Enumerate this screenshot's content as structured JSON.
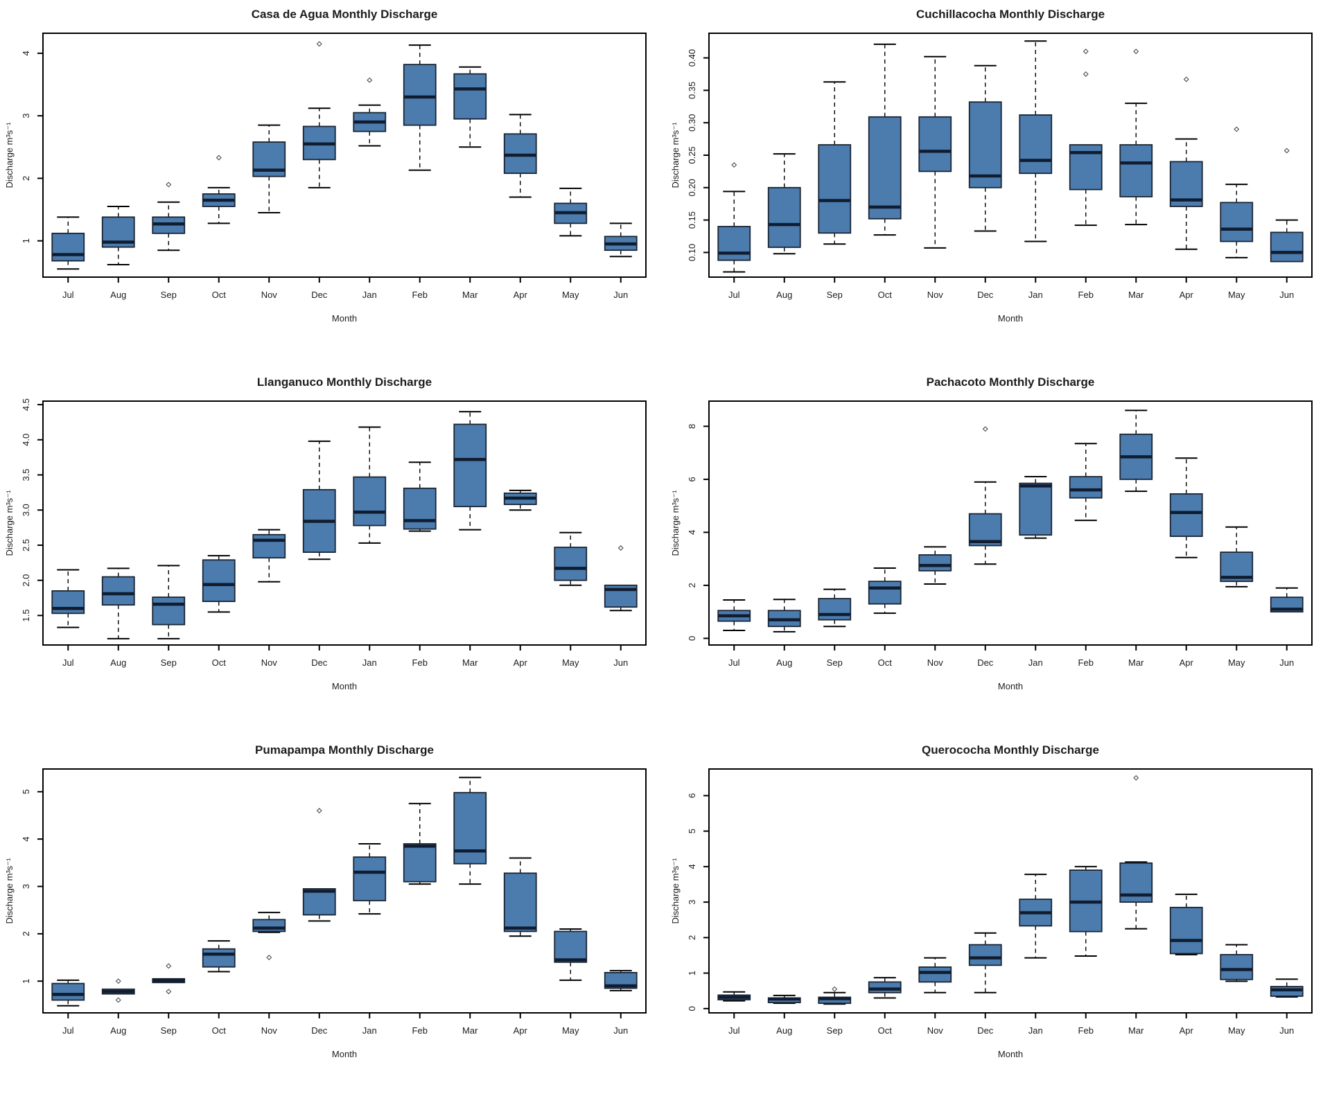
{
  "months": [
    "Jul",
    "Aug",
    "Sep",
    "Oct",
    "Nov",
    "Dec",
    "Jan",
    "Feb",
    "Mar",
    "Apr",
    "May",
    "Jun"
  ],
  "colors": {
    "box_fill": "#4b7cad",
    "box_stroke": "#1a2433",
    "median": "#101c30",
    "whisker": "#000000",
    "outlier": "#4a4a4a",
    "frame": "#000000",
    "text": "#1c1c1c"
  },
  "chart_data": [
    {
      "type": "boxplot",
      "title": "Casa de Agua Monthly Discharge",
      "xlabel": "Month",
      "ylabel": "Discharge m³s⁻¹",
      "categories": [
        "Jul",
        "Aug",
        "Sep",
        "Oct",
        "Nov",
        "Dec",
        "Jan",
        "Feb",
        "Mar",
        "Apr",
        "May",
        "Jun"
      ],
      "ylim": [
        0.42,
        4.32
      ],
      "yticks": [
        {
          "v": 1,
          "label": "1"
        },
        {
          "v": 2,
          "label": "2"
        },
        {
          "v": 3,
          "label": "3"
        },
        {
          "v": 4,
          "label": "4"
        }
      ],
      "boxes": [
        {
          "month": "Jul",
          "low": 0.55,
          "q1": 0.68,
          "med": 0.78,
          "q3": 1.12,
          "high": 1.38,
          "out": []
        },
        {
          "month": "Aug",
          "low": 0.62,
          "q1": 0.9,
          "med": 0.98,
          "q3": 1.38,
          "high": 1.55,
          "out": []
        },
        {
          "month": "Sep",
          "low": 0.85,
          "q1": 1.12,
          "med": 1.27,
          "q3": 1.38,
          "high": 1.62,
          "out": [
            1.9
          ]
        },
        {
          "month": "Oct",
          "low": 1.28,
          "q1": 1.55,
          "med": 1.65,
          "q3": 1.75,
          "high": 1.85,
          "out": [
            2.33
          ]
        },
        {
          "month": "Nov",
          "low": 1.45,
          "q1": 2.03,
          "med": 2.13,
          "q3": 2.58,
          "high": 2.85,
          "out": []
        },
        {
          "month": "Dec",
          "low": 1.85,
          "q1": 2.3,
          "med": 2.55,
          "q3": 2.83,
          "high": 3.12,
          "out": [
            4.15
          ]
        },
        {
          "month": "Jan",
          "low": 2.52,
          "q1": 2.75,
          "med": 2.9,
          "q3": 3.05,
          "high": 3.17,
          "out": [
            3.57
          ]
        },
        {
          "month": "Feb",
          "low": 2.13,
          "q1": 2.85,
          "med": 3.3,
          "q3": 3.82,
          "high": 4.13,
          "out": []
        },
        {
          "month": "Mar",
          "low": 2.5,
          "q1": 2.95,
          "med": 3.43,
          "q3": 3.67,
          "high": 3.78,
          "out": []
        },
        {
          "month": "Apr",
          "low": 1.7,
          "q1": 2.08,
          "med": 2.37,
          "q3": 2.71,
          "high": 3.02,
          "out": []
        },
        {
          "month": "May",
          "low": 1.08,
          "q1": 1.28,
          "med": 1.45,
          "q3": 1.6,
          "high": 1.84,
          "out": []
        },
        {
          "month": "Jun",
          "low": 0.75,
          "q1": 0.85,
          "med": 0.95,
          "q3": 1.07,
          "high": 1.28,
          "out": []
        }
      ]
    },
    {
      "type": "boxplot",
      "title": "Cuchillacocha Monthly Discharge",
      "xlabel": "Month",
      "ylabel": "Discharge m³s⁻¹",
      "categories": [
        "Jul",
        "Aug",
        "Sep",
        "Oct",
        "Nov",
        "Dec",
        "Jan",
        "Feb",
        "Mar",
        "Apr",
        "May",
        "Jun"
      ],
      "ylim": [
        0.062,
        0.438
      ],
      "yticks": [
        {
          "v": 0.1,
          "label": "0.10"
        },
        {
          "v": 0.15,
          "label": "0.15"
        },
        {
          "v": 0.2,
          "label": "0.20"
        },
        {
          "v": 0.25,
          "label": "0.25"
        },
        {
          "v": 0.3,
          "label": "0.30"
        },
        {
          "v": 0.35,
          "label": "0.35"
        },
        {
          "v": 0.4,
          "label": "0.40"
        }
      ],
      "boxes": [
        {
          "month": "Jul",
          "low": 0.07,
          "q1": 0.088,
          "med": 0.099,
          "q3": 0.14,
          "high": 0.194,
          "out": [
            0.235
          ]
        },
        {
          "month": "Aug",
          "low": 0.098,
          "q1": 0.108,
          "med": 0.143,
          "q3": 0.2,
          "high": 0.252,
          "out": []
        },
        {
          "month": "Sep",
          "low": 0.113,
          "q1": 0.13,
          "med": 0.18,
          "q3": 0.266,
          "high": 0.363,
          "out": []
        },
        {
          "month": "Oct",
          "low": 0.127,
          "q1": 0.152,
          "med": 0.17,
          "q3": 0.309,
          "high": 0.421,
          "out": []
        },
        {
          "month": "Nov",
          "low": 0.107,
          "q1": 0.225,
          "med": 0.256,
          "q3": 0.309,
          "high": 0.402,
          "out": []
        },
        {
          "month": "Dec",
          "low": 0.133,
          "q1": 0.2,
          "med": 0.218,
          "q3": 0.332,
          "high": 0.388,
          "out": []
        },
        {
          "month": "Jan",
          "low": 0.117,
          "q1": 0.222,
          "med": 0.242,
          "q3": 0.312,
          "high": 0.426,
          "out": []
        },
        {
          "month": "Feb",
          "low": 0.142,
          "q1": 0.197,
          "med": 0.254,
          "q3": 0.266,
          "high": 0.266,
          "out": [
            0.375,
            0.41
          ]
        },
        {
          "month": "Mar",
          "low": 0.143,
          "q1": 0.186,
          "med": 0.238,
          "q3": 0.266,
          "high": 0.33,
          "out": [
            0.41
          ]
        },
        {
          "month": "Apr",
          "low": 0.105,
          "q1": 0.171,
          "med": 0.181,
          "q3": 0.24,
          "high": 0.275,
          "out": [
            0.367
          ]
        },
        {
          "month": "May",
          "low": 0.092,
          "q1": 0.117,
          "med": 0.136,
          "q3": 0.177,
          "high": 0.205,
          "out": [
            0.29
          ]
        },
        {
          "month": "Jun",
          "low": 0.085,
          "q1": 0.086,
          "med": 0.1,
          "q3": 0.131,
          "high": 0.15,
          "out": [
            0.257
          ]
        }
      ]
    },
    {
      "type": "boxplot",
      "title": "Llanganuco Monthly Discharge",
      "xlabel": "Month",
      "ylabel": "Discharge m³s⁻¹",
      "categories": [
        "Jul",
        "Aug",
        "Sep",
        "Oct",
        "Nov",
        "Dec",
        "Jan",
        "Feb",
        "Mar",
        "Apr",
        "May",
        "Jun"
      ],
      "ylim": [
        1.08,
        4.55
      ],
      "yticks": [
        {
          "v": 1.5,
          "label": "1.5"
        },
        {
          "v": 2.0,
          "label": "2.0"
        },
        {
          "v": 2.5,
          "label": "2.5"
        },
        {
          "v": 3.0,
          "label": "3.0"
        },
        {
          "v": 3.5,
          "label": "3.5"
        },
        {
          "v": 4.0,
          "label": "4.0"
        },
        {
          "v": 4.5,
          "label": "4.5"
        }
      ],
      "boxes": [
        {
          "month": "Jul",
          "low": 1.33,
          "q1": 1.53,
          "med": 1.6,
          "q3": 1.85,
          "high": 2.15,
          "out": []
        },
        {
          "month": "Aug",
          "low": 1.17,
          "q1": 1.65,
          "med": 1.81,
          "q3": 2.05,
          "high": 2.17,
          "out": []
        },
        {
          "month": "Sep",
          "low": 1.17,
          "q1": 1.37,
          "med": 1.66,
          "q3": 1.76,
          "high": 2.21,
          "out": []
        },
        {
          "month": "Oct",
          "low": 1.55,
          "q1": 1.7,
          "med": 1.94,
          "q3": 2.29,
          "high": 2.35,
          "out": []
        },
        {
          "month": "Nov",
          "low": 1.98,
          "q1": 2.32,
          "med": 2.57,
          "q3": 2.65,
          "high": 2.72,
          "out": []
        },
        {
          "month": "Dec",
          "low": 2.3,
          "q1": 2.4,
          "med": 2.84,
          "q3": 3.29,
          "high": 3.98,
          "out": []
        },
        {
          "month": "Jan",
          "low": 2.53,
          "q1": 2.78,
          "med": 2.97,
          "q3": 3.47,
          "high": 4.18,
          "out": []
        },
        {
          "month": "Feb",
          "low": 2.7,
          "q1": 2.73,
          "med": 2.85,
          "q3": 3.31,
          "high": 3.68,
          "out": []
        },
        {
          "month": "Mar",
          "low": 2.72,
          "q1": 3.05,
          "med": 3.72,
          "q3": 4.22,
          "high": 4.4,
          "out": []
        },
        {
          "month": "Apr",
          "low": 3.0,
          "q1": 3.08,
          "med": 3.17,
          "q3": 3.24,
          "high": 3.28,
          "out": []
        },
        {
          "month": "May",
          "low": 1.93,
          "q1": 2.0,
          "med": 2.17,
          "q3": 2.47,
          "high": 2.68,
          "out": []
        },
        {
          "month": "Jun",
          "low": 1.57,
          "q1": 1.62,
          "med": 1.87,
          "q3": 1.93,
          "high": 1.93,
          "out": [
            2.46
          ]
        }
      ]
    },
    {
      "type": "boxplot",
      "title": "Pachacoto Monthly Discharge",
      "xlabel": "Month",
      "ylabel": "Discharge m³s⁻¹",
      "categories": [
        "Jul",
        "Aug",
        "Sep",
        "Oct",
        "Nov",
        "Dec",
        "Jan",
        "Feb",
        "Mar",
        "Apr",
        "May",
        "Jun"
      ],
      "ylim": [
        -0.25,
        8.95
      ],
      "yticks": [
        {
          "v": 0,
          "label": "0"
        },
        {
          "v": 2,
          "label": "2"
        },
        {
          "v": 4,
          "label": "4"
        },
        {
          "v": 6,
          "label": "6"
        },
        {
          "v": 8,
          "label": "8"
        }
      ],
      "boxes": [
        {
          "month": "Jul",
          "low": 0.3,
          "q1": 0.65,
          "med": 0.85,
          "q3": 1.05,
          "high": 1.45,
          "out": []
        },
        {
          "month": "Aug",
          "low": 0.25,
          "q1": 0.45,
          "med": 0.7,
          "q3": 1.05,
          "high": 1.47,
          "out": []
        },
        {
          "month": "Sep",
          "low": 0.45,
          "q1": 0.7,
          "med": 0.9,
          "q3": 1.5,
          "high": 1.85,
          "out": []
        },
        {
          "month": "Oct",
          "low": 0.95,
          "q1": 1.3,
          "med": 1.9,
          "q3": 2.15,
          "high": 2.65,
          "out": []
        },
        {
          "month": "Nov",
          "low": 2.05,
          "q1": 2.55,
          "med": 2.75,
          "q3": 3.15,
          "high": 3.45,
          "out": []
        },
        {
          "month": "Dec",
          "low": 2.8,
          "q1": 3.5,
          "med": 3.65,
          "q3": 4.7,
          "high": 5.9,
          "out": [
            7.9
          ]
        },
        {
          "month": "Jan",
          "low": 3.78,
          "q1": 3.9,
          "med": 5.75,
          "q3": 5.85,
          "high": 6.1,
          "out": []
        },
        {
          "month": "Feb",
          "low": 4.45,
          "q1": 5.3,
          "med": 5.6,
          "q3": 6.1,
          "high": 7.35,
          "out": []
        },
        {
          "month": "Mar",
          "low": 5.55,
          "q1": 6.0,
          "med": 6.85,
          "q3": 7.7,
          "high": 8.6,
          "out": []
        },
        {
          "month": "Apr",
          "low": 3.05,
          "q1": 3.85,
          "med": 4.75,
          "q3": 5.45,
          "high": 6.8,
          "out": []
        },
        {
          "month": "May",
          "low": 1.95,
          "q1": 2.15,
          "med": 2.3,
          "q3": 3.25,
          "high": 4.2,
          "out": []
        },
        {
          "month": "Jun",
          "low": 1.0,
          "q1": 1.0,
          "med": 1.1,
          "q3": 1.55,
          "high": 1.9,
          "out": []
        }
      ]
    },
    {
      "type": "boxplot",
      "title": "Pumapampa Monthly Discharge",
      "xlabel": "Month",
      "ylabel": "Discharge m³s⁻¹",
      "categories": [
        "Jul",
        "Aug",
        "Sep",
        "Oct",
        "Nov",
        "Dec",
        "Jan",
        "Feb",
        "Mar",
        "Apr",
        "May",
        "Jun"
      ],
      "ylim": [
        0.33,
        5.48
      ],
      "yticks": [
        {
          "v": 1,
          "label": "1"
        },
        {
          "v": 2,
          "label": "2"
        },
        {
          "v": 3,
          "label": "3"
        },
        {
          "v": 4,
          "label": "4"
        },
        {
          "v": 5,
          "label": "5"
        }
      ],
      "boxes": [
        {
          "month": "Jul",
          "low": 0.48,
          "q1": 0.6,
          "med": 0.72,
          "q3": 0.95,
          "high": 1.02,
          "out": []
        },
        {
          "month": "Aug",
          "low": 0.73,
          "q1": 0.73,
          "med": 0.78,
          "q3": 0.83,
          "high": 0.83,
          "out": [
            1.0,
            0.6
          ]
        },
        {
          "month": "Sep",
          "low": 0.97,
          "q1": 0.97,
          "med": 1.01,
          "q3": 1.05,
          "high": 1.05,
          "out": [
            1.32,
            0.78
          ]
        },
        {
          "month": "Oct",
          "low": 1.2,
          "q1": 1.3,
          "med": 1.57,
          "q3": 1.68,
          "high": 1.85,
          "out": []
        },
        {
          "month": "Nov",
          "low": 2.03,
          "q1": 2.05,
          "med": 2.12,
          "q3": 2.3,
          "high": 2.45,
          "out": [
            1.5
          ]
        },
        {
          "month": "Dec",
          "low": 2.27,
          "q1": 2.4,
          "med": 2.9,
          "q3": 2.95,
          "high": 2.95,
          "out": [
            4.6
          ]
        },
        {
          "month": "Jan",
          "low": 2.42,
          "q1": 2.7,
          "med": 3.3,
          "q3": 3.62,
          "high": 3.9,
          "out": []
        },
        {
          "month": "Feb",
          "low": 3.05,
          "q1": 3.1,
          "med": 3.85,
          "q3": 3.9,
          "high": 4.75,
          "out": []
        },
        {
          "month": "Mar",
          "low": 3.05,
          "q1": 3.48,
          "med": 3.75,
          "q3": 4.98,
          "high": 5.3,
          "out": []
        },
        {
          "month": "Apr",
          "low": 1.95,
          "q1": 2.05,
          "med": 2.12,
          "q3": 3.28,
          "high": 3.6,
          "out": []
        },
        {
          "month": "May",
          "low": 1.02,
          "q1": 1.4,
          "med": 1.45,
          "q3": 2.05,
          "high": 2.1,
          "out": []
        },
        {
          "month": "Jun",
          "low": 0.8,
          "q1": 0.85,
          "med": 0.9,
          "q3": 1.18,
          "high": 1.22,
          "out": []
        }
      ]
    },
    {
      "type": "boxplot",
      "title": "Querococha Monthly Discharge",
      "xlabel": "Month",
      "ylabel": "Discharge m³s⁻¹",
      "categories": [
        "Jul",
        "Aug",
        "Sep",
        "Oct",
        "Nov",
        "Dec",
        "Jan",
        "Feb",
        "Mar",
        "Apr",
        "May",
        "Jun"
      ],
      "ylim": [
        -0.12,
        6.75
      ],
      "yticks": [
        {
          "v": 0,
          "label": "0"
        },
        {
          "v": 1,
          "label": "1"
        },
        {
          "v": 2,
          "label": "2"
        },
        {
          "v": 3,
          "label": "3"
        },
        {
          "v": 4,
          "label": "4"
        },
        {
          "v": 5,
          "label": "5"
        },
        {
          "v": 6,
          "label": "6"
        }
      ],
      "boxes": [
        {
          "month": "Jul",
          "low": 0.22,
          "q1": 0.25,
          "med": 0.32,
          "q3": 0.38,
          "high": 0.47,
          "out": []
        },
        {
          "month": "Aug",
          "low": 0.15,
          "q1": 0.17,
          "med": 0.27,
          "q3": 0.3,
          "high": 0.37,
          "out": []
        },
        {
          "month": "Sep",
          "low": 0.13,
          "q1": 0.15,
          "med": 0.28,
          "q3": 0.32,
          "high": 0.45,
          "out": [
            0.55
          ]
        },
        {
          "month": "Oct",
          "low": 0.3,
          "q1": 0.45,
          "med": 0.55,
          "q3": 0.75,
          "high": 0.87,
          "out": []
        },
        {
          "month": "Nov",
          "low": 0.45,
          "q1": 0.75,
          "med": 1.02,
          "q3": 1.17,
          "high": 1.43,
          "out": []
        },
        {
          "month": "Dec",
          "low": 0.45,
          "q1": 1.22,
          "med": 1.43,
          "q3": 1.8,
          "high": 2.13,
          "out": []
        },
        {
          "month": "Jan",
          "low": 1.43,
          "q1": 2.33,
          "med": 2.7,
          "q3": 3.08,
          "high": 3.78,
          "out": []
        },
        {
          "month": "Feb",
          "low": 1.48,
          "q1": 2.17,
          "med": 3.0,
          "q3": 3.9,
          "high": 4.0,
          "out": []
        },
        {
          "month": "Mar",
          "low": 2.25,
          "q1": 3.0,
          "med": 3.2,
          "q3": 4.1,
          "high": 4.13,
          "out": [
            6.5
          ]
        },
        {
          "month": "Apr",
          "low": 1.52,
          "q1": 1.55,
          "med": 1.92,
          "q3": 2.85,
          "high": 3.22,
          "out": []
        },
        {
          "month": "May",
          "low": 0.77,
          "q1": 0.82,
          "med": 1.1,
          "q3": 1.52,
          "high": 1.8,
          "out": []
        },
        {
          "month": "Jun",
          "low": 0.33,
          "q1": 0.35,
          "med": 0.53,
          "q3": 0.62,
          "high": 0.83,
          "out": []
        }
      ]
    }
  ]
}
